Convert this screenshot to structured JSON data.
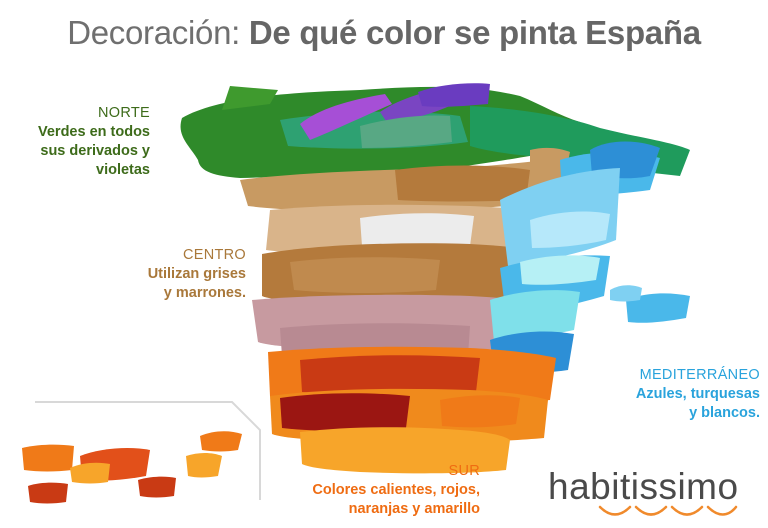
{
  "title": {
    "light": "Decoración:",
    "bold": "De qué color se pinta España"
  },
  "regions": {
    "norte": {
      "name": "NORTE",
      "description": "Verdes en todos\nsus derivados y\nvioletas",
      "color": "#3d6b1a"
    },
    "centro": {
      "name": "CENTRO",
      "description": "Utilizan grises\ny marrones.",
      "color": "#a9783a"
    },
    "mediterraneo": {
      "name": "MEDITERRÁNEO",
      "description": "Azules, turquesas\ny blancos.",
      "color": "#29a3dc"
    },
    "sur": {
      "name": "SUR",
      "description": "Colores calientes, rojos,\nnaranjas y amarillo",
      "color": "#ef6c12"
    }
  },
  "brand": {
    "name": "habitissimo",
    "accent": "#f08a2c"
  },
  "palette": {
    "green_dark": "#2f7f2a",
    "green": "#1f9b4c",
    "teal_green": "#2fa37a",
    "violet": "#7a45c2",
    "lilac": "#a64fd6",
    "tan": "#c89a62",
    "brown": "#b47a3c",
    "grey_light": "#e6e6e6",
    "mauve": "#c79aa0",
    "sky": "#4ab8ea",
    "turquoise": "#7fe0ea",
    "blue": "#2d8fd6",
    "orange": "#f07a18",
    "orange_red": "#e2501a",
    "red": "#c4291c",
    "dark_red": "#9b1612",
    "yellow_orange": "#f7a52a"
  }
}
